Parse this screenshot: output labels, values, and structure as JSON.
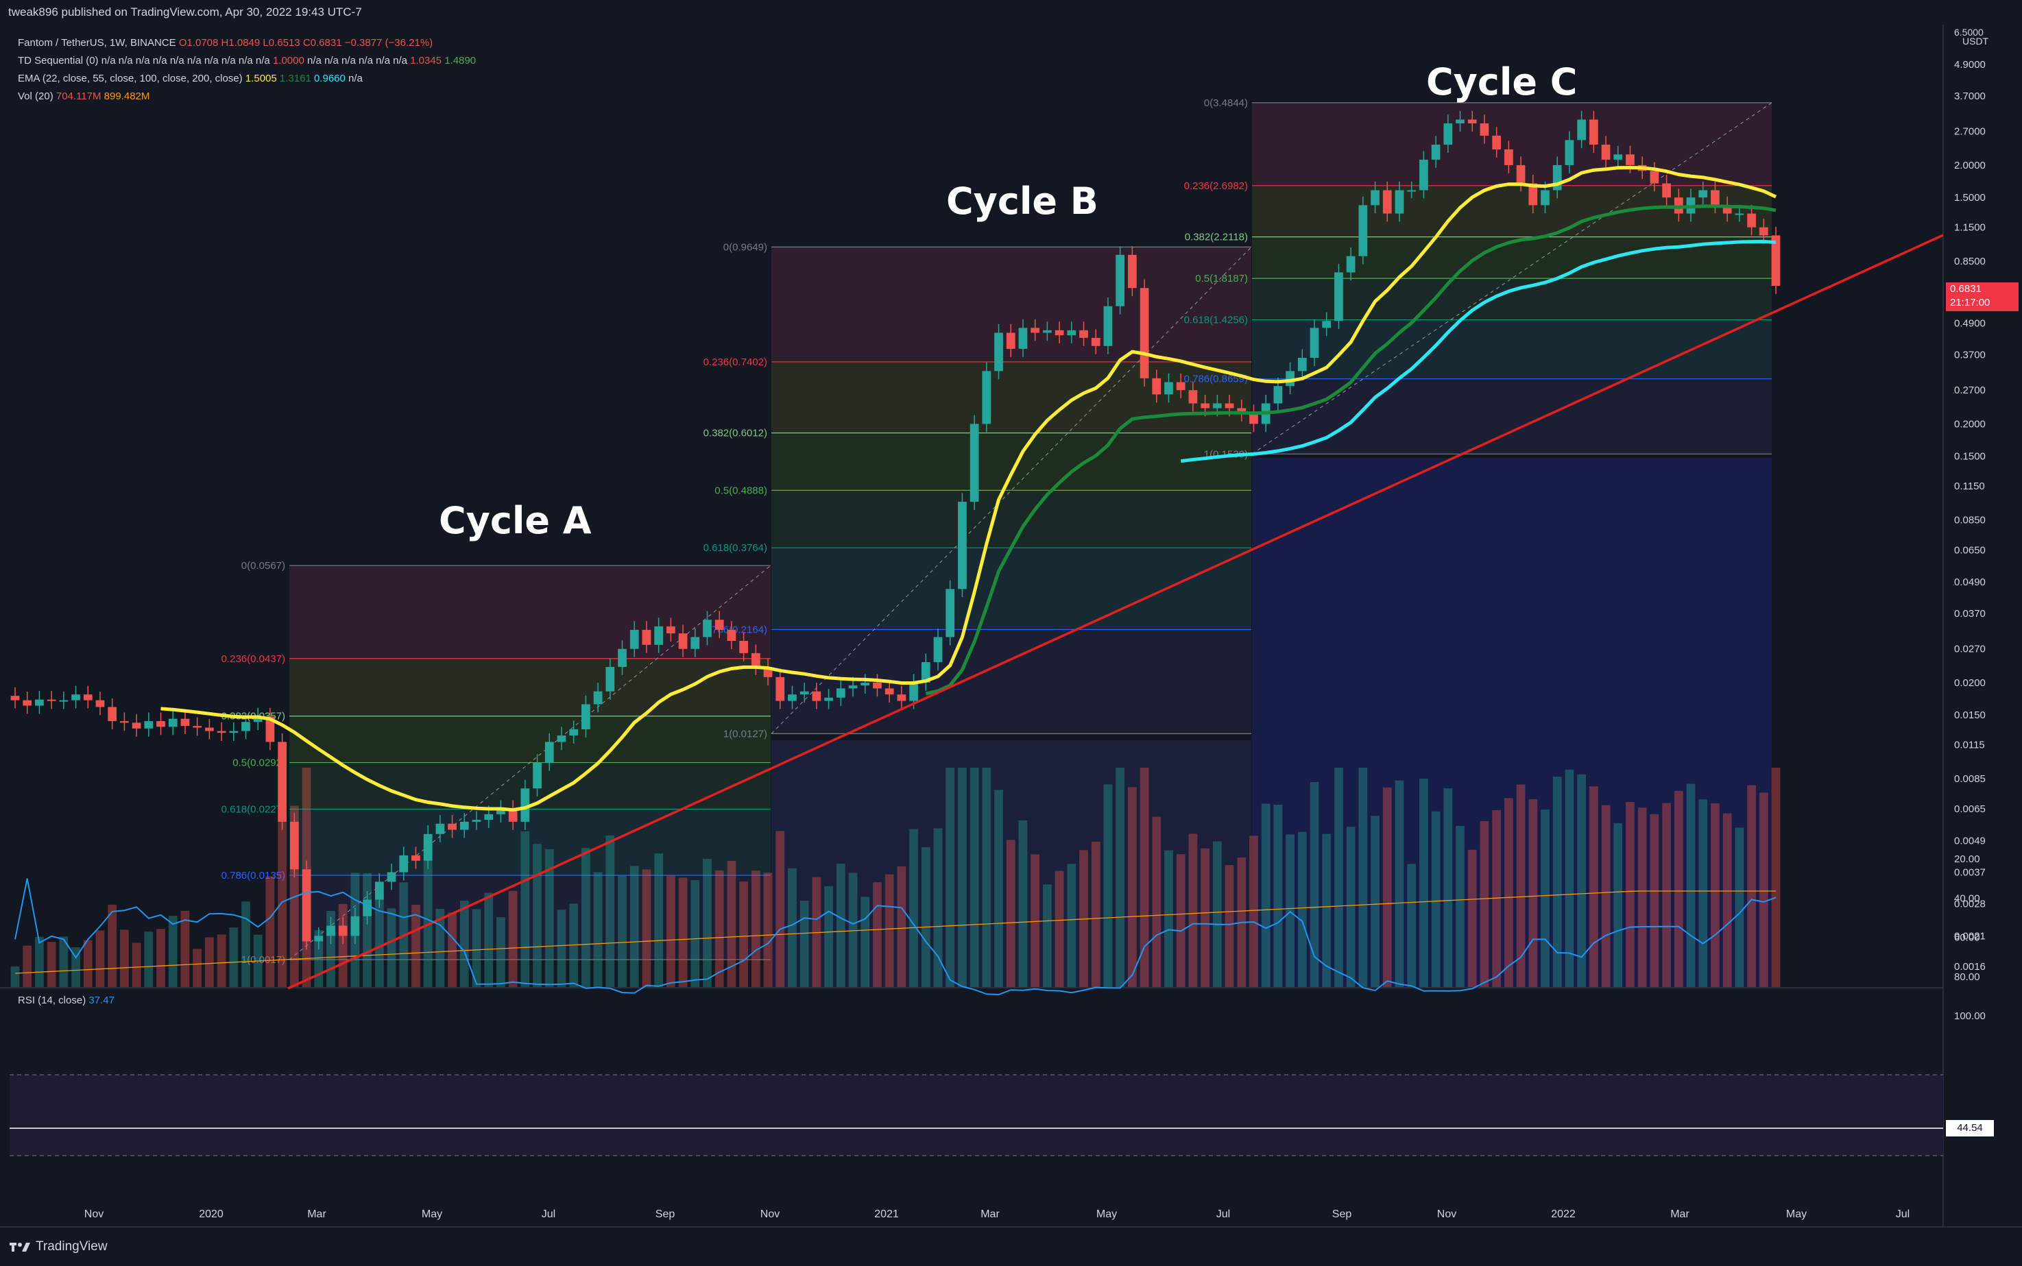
{
  "header": {
    "published": "tweak896 published on TradingView.com, Apr 30, 2022 19:43 UTC-7"
  },
  "legend": {
    "symbol": "Fantom / TetherUS, 1W, BINANCE",
    "ohlc": {
      "o": "O1.0708",
      "h": "H1.0849",
      "l": "L0.6513",
      "c": "C0.6831",
      "chg": "−0.3877 (−36.21%)"
    },
    "td": {
      "label": "TD Sequential (0)",
      "na": "n/a n/a n/a n/a n/a n/a n/a n/a n/a n/a",
      "v1": "1.0000",
      "na2": "n/a n/a n/a n/a n/a n/a",
      "v2": "1.0345",
      "v3": "1.4890"
    },
    "ema": {
      "label": "EMA (22, close, 55, close, 100, close, 200, close)",
      "v1": "1.5005",
      "v2": "1.3161",
      "v3": "0.9660",
      "v4": "n/a"
    },
    "vol": {
      "label": "Vol (20)",
      "v1": "704.117M",
      "v2": "899.482M"
    },
    "rsi": {
      "label": "RSI (14, close)",
      "v": "37.47"
    }
  },
  "price_axis": {
    "unit_top": "6.5000",
    "unit": "USDT",
    "ticks": [
      "4.9000",
      "3.7000",
      "2.7000",
      "2.0000",
      "1.5000",
      "1.1500",
      "0.8500",
      "0.6500",
      "0.4900",
      "0.3700",
      "0.2700",
      "0.2000",
      "0.1500",
      "0.1150",
      "0.0850",
      "0.0650",
      "0.0490",
      "0.0370",
      "0.0270",
      "0.0200",
      "0.0150",
      "0.0115",
      "0.0085",
      "0.0065",
      "0.0049",
      "0.0037",
      "0.0028",
      "0.0021",
      "0.0016"
    ],
    "last_price": "0.6831",
    "countdown": "21:17:00"
  },
  "rsi_axis": {
    "ticks": [
      "100.00",
      "80.00",
      "60.00",
      "40.00",
      "20.00"
    ],
    "badge": "44.54"
  },
  "time_axis": [
    "Nov",
    "2020",
    "Mar",
    "May",
    "Jul",
    "Sep",
    "Nov",
    "2021",
    "Mar",
    "May",
    "Jul",
    "Sep",
    "Nov",
    "2022",
    "Mar",
    "May",
    "Jul"
  ],
  "annotations": {
    "cycle_a": "Cycle A",
    "cycle_b": "Cycle B",
    "cycle_c": "Cycle C"
  },
  "fib_a": [
    "0(0.0567)",
    "0.236(0.0437)",
    "0.382(0.0357)",
    "0.5(0.0292)",
    "0.618(0.0227)",
    "0.786(0.0135)",
    "1(0.0017)"
  ],
  "fib_b": [
    "0(0.9649)",
    "0.236(0.7402)",
    "0.382(0.6012)",
    "0.5(0.4888)",
    "0.618(0.3764)",
    "0.786(0.2164)",
    "1(0.0127)"
  ],
  "fib_c": [
    "0(3.4844)",
    "0.236(2.6982)",
    "0.382(2.2118)",
    "0.5(1.8187)",
    "0.618(1.4256)",
    "0.786(0.8659)",
    "1(0.1530)"
  ],
  "colors": {
    "up": "#26a69a",
    "down": "#ef5350",
    "ema22": "#ffeb3b",
    "ema55": "#1b8a3a",
    "ema100": "#2ee6f2",
    "trend": "#e32020",
    "rsi": "#2196f3"
  },
  "brand": "TradingView",
  "chart_data": {
    "type": "candlestick",
    "title": "Fantom / TetherUS, 1W, BINANCE",
    "price_scale": "log",
    "ylim": [
      0.0013,
      6.5
    ],
    "close": [
      0.0171,
      0.0163,
      0.0172,
      0.017,
      0.0171,
      0.018,
      0.0171,
      0.0161,
      0.0142,
      0.014,
      0.0133,
      0.0142,
      0.0135,
      0.0145,
      0.0136,
      0.0134,
      0.013,
      0.0128,
      0.013,
      0.0141,
      0.0148,
      0.0118,
      0.0058,
      0.0038,
      0.002,
      0.0021,
      0.0023,
      0.0021,
      0.0025,
      0.0029,
      0.0034,
      0.0037,
      0.0043,
      0.0041,
      0.0052,
      0.0057,
      0.0054,
      0.0058,
      0.0059,
      0.0062,
      0.0065,
      0.0058,
      0.0078,
      0.0098,
      0.0118,
      0.0125,
      0.0132,
      0.0165,
      0.0185,
      0.023,
      0.027,
      0.032,
      0.028,
      0.033,
      0.031,
      0.027,
      0.03,
      0.035,
      0.032,
      0.029,
      0.026,
      0.023,
      0.021,
      0.017,
      0.018,
      0.0185,
      0.017,
      0.0175,
      0.019,
      0.0195,
      0.02,
      0.019,
      0.018,
      0.017,
      0.02,
      0.024,
      0.03,
      0.046,
      0.1,
      0.2,
      0.32,
      0.45,
      0.39,
      0.47,
      0.45,
      0.46,
      0.44,
      0.46,
      0.43,
      0.4,
      0.57,
      0.9,
      0.67,
      0.3,
      0.26,
      0.29,
      0.27,
      0.24,
      0.23,
      0.24,
      0.23,
      0.22,
      0.2,
      0.24,
      0.28,
      0.32,
      0.36,
      0.47,
      0.5,
      0.77,
      0.89,
      1.4,
      1.6,
      1.3,
      1.6,
      1.6,
      2.1,
      2.4,
      2.9,
      3.0,
      2.9,
      2.6,
      2.3,
      2.0,
      1.7,
      1.4,
      1.6,
      2.0,
      2.5,
      3.0,
      2.4,
      2.1,
      2.2,
      2.0,
      1.9,
      1.7,
      1.5,
      1.3,
      1.5,
      1.6,
      1.4,
      1.3,
      1.3,
      1.15,
      1.07,
      0.6831
    ]
  }
}
